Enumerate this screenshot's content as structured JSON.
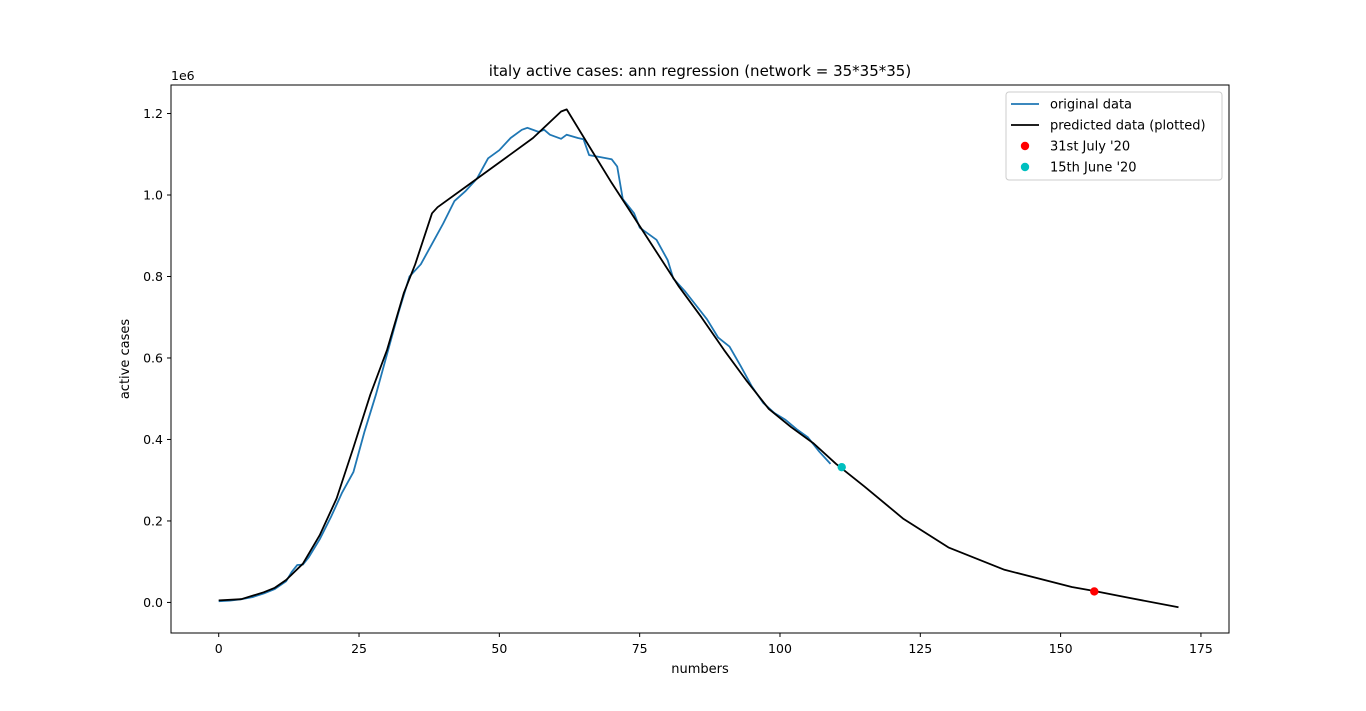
{
  "chart_data": {
    "type": "line",
    "title": "italy active cases: ann regression (network = 35*35*35)",
    "xlabel": "numbers",
    "ylabel": "active cases",
    "y_offset_label": "1e6",
    "xlim": [
      -8.5,
      180
    ],
    "ylim": [
      -75000,
      1270000
    ],
    "xticks": [
      0,
      25,
      50,
      75,
      100,
      125,
      150,
      175
    ],
    "yticks": [
      0,
      200000,
      400000,
      600000,
      800000,
      1000000,
      1200000
    ],
    "ytick_labels": [
      "0.0",
      "0.2",
      "0.4",
      "0.6",
      "0.8",
      "1.0",
      "1.2"
    ],
    "grid": false,
    "legend_position": "upper right",
    "series": [
      {
        "name": "original data",
        "kind": "line",
        "color": "#1f77b4",
        "points": [
          [
            0,
            3000
          ],
          [
            2,
            4500
          ],
          [
            4,
            8000
          ],
          [
            6,
            13000
          ],
          [
            8,
            22000
          ],
          [
            10,
            33000
          ],
          [
            12,
            52000
          ],
          [
            13,
            75000
          ],
          [
            14,
            92000
          ],
          [
            15,
            93000
          ],
          [
            16,
            110000
          ],
          [
            18,
            155000
          ],
          [
            20,
            210000
          ],
          [
            22,
            270000
          ],
          [
            24,
            320000
          ],
          [
            26,
            420000
          ],
          [
            28,
            510000
          ],
          [
            30,
            610000
          ],
          [
            32,
            710000
          ],
          [
            34,
            800000
          ],
          [
            36,
            830000
          ],
          [
            38,
            880000
          ],
          [
            40,
            930000
          ],
          [
            42,
            985000
          ],
          [
            44,
            1010000
          ],
          [
            46,
            1040000
          ],
          [
            48,
            1090000
          ],
          [
            50,
            1110000
          ],
          [
            52,
            1140000
          ],
          [
            54,
            1160000
          ],
          [
            55,
            1165000
          ],
          [
            57,
            1155000
          ],
          [
            58,
            1160000
          ],
          [
            59,
            1148000
          ],
          [
            61,
            1138000
          ],
          [
            62,
            1148000
          ],
          [
            64,
            1140000
          ],
          [
            65,
            1137000
          ],
          [
            66,
            1098000
          ],
          [
            68,
            1093000
          ],
          [
            70,
            1088000
          ],
          [
            71,
            1070000
          ],
          [
            72,
            990000
          ],
          [
            74,
            955000
          ],
          [
            75,
            920000
          ],
          [
            76,
            910000
          ],
          [
            78,
            890000
          ],
          [
            80,
            840000
          ],
          [
            81,
            795000
          ],
          [
            83,
            765000
          ],
          [
            85,
            730000
          ],
          [
            87,
            695000
          ],
          [
            89,
            650000
          ],
          [
            91,
            628000
          ],
          [
            93,
            580000
          ],
          [
            95,
            530000
          ],
          [
            97,
            490000
          ],
          [
            99,
            465000
          ],
          [
            101,
            448000
          ],
          [
            103,
            425000
          ],
          [
            105,
            405000
          ],
          [
            107,
            370000
          ],
          [
            109,
            340000
          ]
        ]
      },
      {
        "name": "predicted data (plotted)",
        "kind": "line",
        "color": "#000000",
        "points": [
          [
            0,
            5000
          ],
          [
            4,
            8000
          ],
          [
            8,
            25000
          ],
          [
            10,
            36000
          ],
          [
            12,
            55000
          ],
          [
            15,
            95000
          ],
          [
            18,
            165000
          ],
          [
            21,
            255000
          ],
          [
            24,
            380000
          ],
          [
            27,
            510000
          ],
          [
            30,
            620000
          ],
          [
            33,
            760000
          ],
          [
            35,
            830000
          ],
          [
            38,
            955000
          ],
          [
            39,
            970000
          ],
          [
            44,
            1020000
          ],
          [
            48,
            1060000
          ],
          [
            52,
            1100000
          ],
          [
            56,
            1140000
          ],
          [
            61,
            1205000
          ],
          [
            62,
            1210000
          ],
          [
            66,
            1120000
          ],
          [
            70,
            1030000
          ],
          [
            74,
            945000
          ],
          [
            78,
            860000
          ],
          [
            82,
            775000
          ],
          [
            86,
            700000
          ],
          [
            90,
            620000
          ],
          [
            94,
            545000
          ],
          [
            98,
            475000
          ],
          [
            102,
            430000
          ],
          [
            106,
            390000
          ],
          [
            110,
            340000
          ],
          [
            115,
            285000
          ],
          [
            122,
            205000
          ],
          [
            130,
            135000
          ],
          [
            140,
            80000
          ],
          [
            152,
            38000
          ],
          [
            156,
            28000
          ],
          [
            162,
            12000
          ],
          [
            171,
            -12000
          ]
        ]
      },
      {
        "name": "31st July '20",
        "kind": "scatter",
        "color": "#ff0000",
        "points": [
          [
            156,
            27000
          ]
        ]
      },
      {
        "name": "15th June '20",
        "kind": "scatter",
        "color": "#00bfbf",
        "points": [
          [
            111,
            332000
          ]
        ]
      }
    ]
  }
}
